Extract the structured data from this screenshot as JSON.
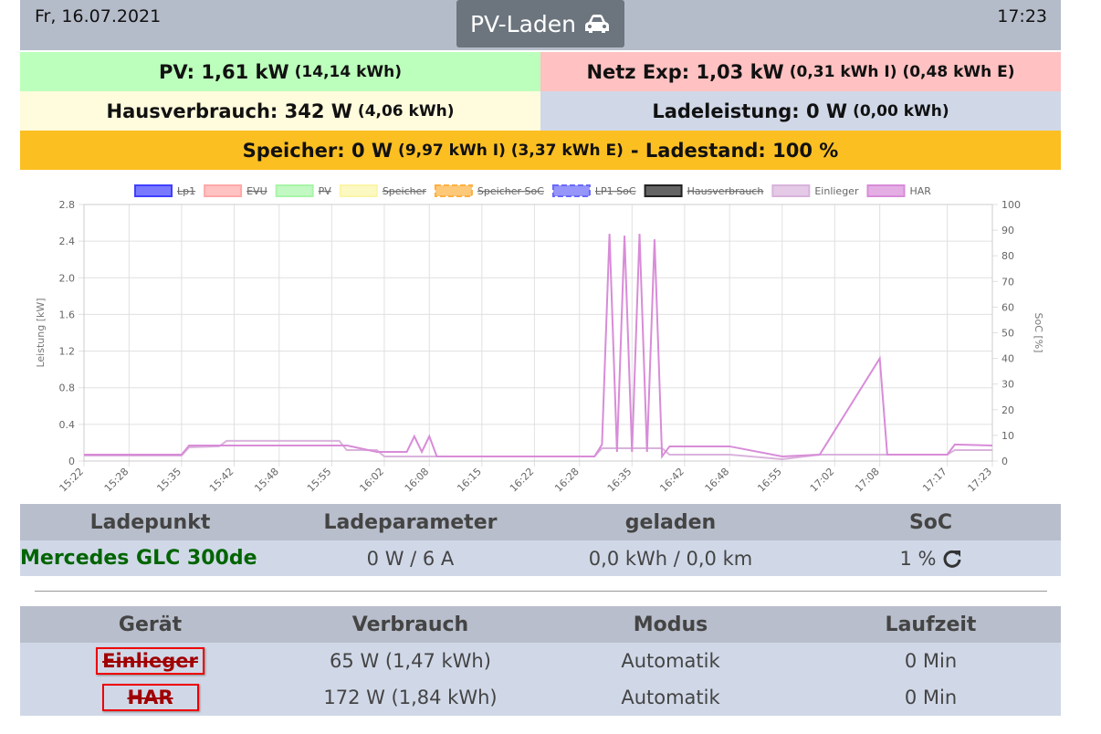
{
  "header": {
    "date": "Fr, 16.07.2021",
    "mode_button": "PV-Laden",
    "time": "17:23"
  },
  "status": {
    "pv": {
      "label": "PV: 1,61 kW",
      "detail": "(14,14 kWh)"
    },
    "grid": {
      "label": "Netz Exp: 1,03 kW",
      "detail": "(0,31 kWh I) (0,48 kWh E)"
    },
    "house": {
      "label": "Hausverbrauch: 342 W",
      "detail": "(4,06 kWh)"
    },
    "charging": {
      "label": "Ladeleistung: 0 W",
      "detail": "(0,00 kWh)"
    },
    "storage": {
      "label": "Speicher: 0 W",
      "detail": "(9,97 kWh I) (3,37 kWh E)",
      "soc": "- Ladestand: 100 %"
    }
  },
  "chart_data": {
    "type": "line",
    "y_label": "Leistung [kW]",
    "y2_label": "SoC [%]",
    "x": [
      "15:22",
      "15:35",
      "15:36",
      "15:40",
      "15:41",
      "15:56",
      "15:57",
      "16:01",
      "16:02",
      "16:05",
      "16:06",
      "16:07",
      "16:08",
      "16:09",
      "16:30",
      "16:31",
      "16:32",
      "16:33",
      "16:34",
      "16:35",
      "16:36",
      "16:37",
      "16:38",
      "16:39",
      "16:40",
      "16:48",
      "16:55",
      "17:00",
      "17:08",
      "17:09",
      "17:10",
      "17:17",
      "17:18",
      "17:23"
    ],
    "xlim": [
      "15:22",
      "17:23"
    ],
    "xticks": [
      "15:22",
      "15:28",
      "15:35",
      "15:42",
      "15:48",
      "15:55",
      "16:02",
      "16:08",
      "16:15",
      "16:22",
      "16:28",
      "16:35",
      "16:42",
      "16:48",
      "16:55",
      "17:02",
      "17:08",
      "17:17",
      "17:23"
    ],
    "ylim": [
      0,
      2.8
    ],
    "yticks": [
      0,
      0.4,
      0.8,
      1.2,
      1.6,
      {
        "value": 2,
        "label": "2.0"
      },
      2.4,
      2.8
    ],
    "y2lim": [
      0,
      100
    ],
    "y2ticks": [
      0,
      10,
      20,
      30,
      40,
      50,
      60,
      70,
      80,
      90,
      100
    ],
    "grid": true,
    "legend": "top",
    "series": [
      {
        "name": "Lp1",
        "color": "#4040ff",
        "hidden": true
      },
      {
        "name": "EVU",
        "color": "#ffa8a8",
        "hidden": true
      },
      {
        "name": "PV",
        "color": "#a8f5a8",
        "hidden": true
      },
      {
        "name": "Speicher",
        "color": "#fbf5a8",
        "hidden": true
      },
      {
        "name": "Speicher SoC",
        "color": "#fdb040",
        "hidden": true,
        "dashed": true,
        "axis": "y2"
      },
      {
        "name": "LP1 SoC",
        "color": "#6868f8",
        "hidden": true,
        "dashed": true,
        "axis": "y2"
      },
      {
        "name": "Hausverbrauch",
        "color": "#222222",
        "hidden": true
      },
      {
        "name": "Einlieger",
        "color": "#d9b3dc",
        "hidden": false,
        "values": [
          0.06,
          0.06,
          0.15,
          0.16,
          0.22,
          0.22,
          0.12,
          0.12,
          0.05,
          0.05,
          0.05,
          0.05,
          0.05,
          0.05,
          0.05,
          0.14,
          0.14,
          0.14,
          0.14,
          0.14,
          0.14,
          0.14,
          0.14,
          0.14,
          0.07,
          0.07,
          0.02,
          0.07,
          0.07,
          0.07,
          0.07,
          0.07,
          0.12,
          0.12
        ]
      },
      {
        "name": "HAR",
        "color": "#d88cd8",
        "hidden": false,
        "values": [
          0.07,
          0.07,
          0.17,
          0.17,
          0.17,
          0.17,
          0.17,
          0.1,
          0.1,
          0.1,
          0.27,
          0.1,
          0.27,
          0.05,
          0.05,
          0.18,
          2.48,
          0.1,
          2.46,
          0.1,
          2.48,
          0.1,
          2.42,
          0.05,
          0.16,
          0.16,
          0.05,
          0.07,
          1.12,
          0.07,
          0.07,
          0.07,
          0.18,
          0.17
        ]
      }
    ]
  },
  "charge_points": {
    "header": [
      "Ladepunkt",
      "Ladeparameter",
      "geladen",
      "SoC"
    ],
    "rows": [
      [
        "Mercedes GLC 300de",
        "0 W / 6 A",
        "0,0 kWh / 0,0 km",
        "1 %"
      ]
    ]
  },
  "devices": {
    "header": [
      "Gerät",
      "Verbrauch",
      "Modus",
      "Laufzeit"
    ],
    "rows": [
      [
        "Einlieger",
        "65 W (1,47 kWh)",
        "Automatik",
        "0 Min"
      ],
      [
        "HAR",
        "172 W (1,84 kWh)",
        "Automatik",
        "0 Min"
      ]
    ]
  }
}
